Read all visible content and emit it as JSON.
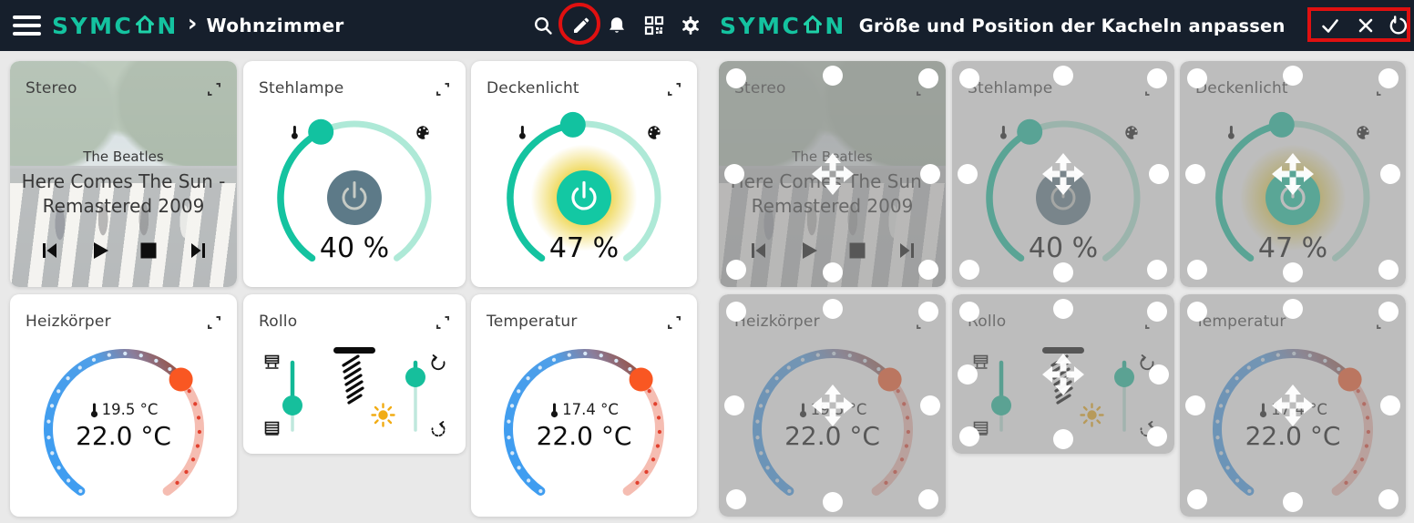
{
  "header": {
    "logo_pre": "SYMC",
    "logo_post": "N",
    "breadcrumb_separator": "›",
    "room": "Wohnzimmer",
    "edit_title": "Größe und Position der Kacheln anpassen",
    "toolbar_icons": [
      "search",
      "edit-pencil",
      "notifications-bell",
      "qr-code",
      "settings-gear"
    ],
    "confirm_bar_icons": [
      "confirm-check",
      "cancel-x",
      "reset-rotate"
    ]
  },
  "tiles": {
    "stereo": {
      "title": "Stereo",
      "artist": "The Beatles",
      "track": "Here Comes The Sun - Remastered 2009",
      "media_controls": [
        "skip-previous",
        "play",
        "stop",
        "skip-next"
      ]
    },
    "stehlampe": {
      "title": "Stehlampe",
      "value": "40 %",
      "state": "off",
      "icons": [
        "color-temperature",
        "color-palette",
        "power"
      ]
    },
    "deckenlicht": {
      "title": "Deckenlicht",
      "value": "47 %",
      "state": "on",
      "icons": [
        "color-temperature",
        "color-palette",
        "power"
      ]
    },
    "heizkoerper": {
      "title": "Heizkörper",
      "current": "19.5 °C",
      "target": "22.0 °C"
    },
    "rollo": {
      "title": "Rollo",
      "icons": [
        "shutter-up",
        "shutter-down",
        "awning",
        "sun",
        "rotate-left",
        "rotate-right"
      ]
    },
    "temperatur": {
      "title": "Temperatur",
      "current": "17.4 °C",
      "target": "22.0 °C"
    }
  },
  "colors": {
    "header_bg": "#161f2c",
    "accent_teal": "#14c3a0",
    "page_bg": "#e9e9e9",
    "knob_orange": "#f95722",
    "glow_yellow": "#e7c50a",
    "annotation_red": "#e01010",
    "slate_button": "#5d7a88",
    "arc_blue": "#3f9df0",
    "arc_rest_pink": "#f5bdb2"
  }
}
